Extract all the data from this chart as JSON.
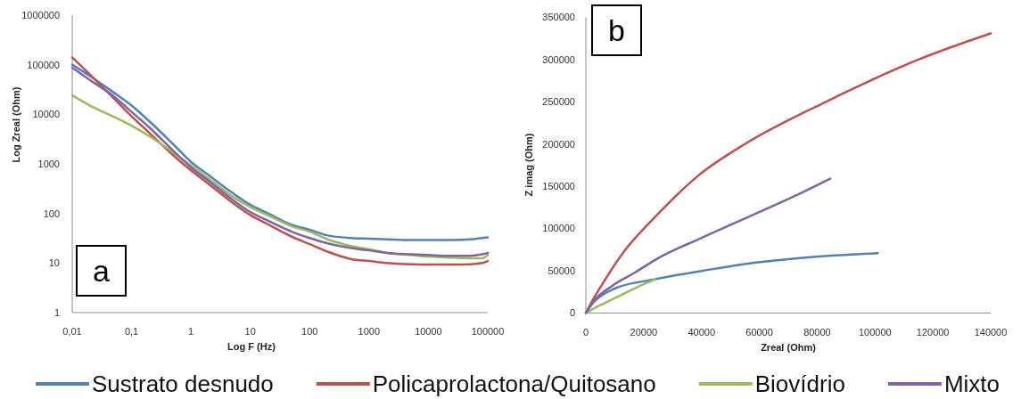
{
  "chart_data": [
    {
      "type": "line",
      "xlabel": "Log F (Hz)",
      "ylabel": "Log Zreal (Ohm)",
      "log": "xy",
      "xlim": [
        0.01,
        100000
      ],
      "ylim": [
        1,
        1000000
      ],
      "xticks": [
        {
          "value": 0.01,
          "label": "0,01"
        },
        {
          "value": 0.1,
          "label": "0,1"
        },
        1,
        10,
        100,
        1000,
        10000,
        100000
      ],
      "yticks": [
        1,
        10,
        100,
        1000,
        10000,
        100000,
        1000000
      ],
      "legend": "bottom",
      "annotations": [
        "a"
      ],
      "x": [
        0.01,
        0.02,
        0.05,
        0.1,
        0.2,
        0.5,
        1,
        2,
        5,
        10,
        20,
        50,
        100,
        200,
        500,
        1000,
        2000,
        5000,
        10000,
        20000,
        50000,
        80000,
        100000
      ],
      "series": [
        {
          "name": "Sustrato desnudo",
          "color": "#4f81bd",
          "values": [
            100000,
            59000,
            27500,
            15000,
            7200,
            2500,
            1100,
            590,
            260,
            150,
            100,
            59,
            47,
            36,
            32,
            31,
            30,
            29,
            29,
            29,
            30,
            32,
            33
          ]
        },
        {
          "name": "Policaprolactona/Quitosano",
          "color": "#c0504d",
          "values": [
            140000,
            63000,
            21000,
            9100,
            4200,
            1500,
            740,
            390,
            165,
            93,
            60,
            34,
            24,
            17,
            12,
            11,
            10,
            9.4,
            9.3,
            9.3,
            9.4,
            10,
            11
          ]
        },
        {
          "name": "Biovídrio",
          "color": "#9bbb59",
          "values": [
            24000,
            15000,
            8900,
            5900,
            3600,
            1700,
            930,
            500,
            220,
            135,
            91,
            55,
            43,
            30,
            22,
            19,
            16,
            14.5,
            13.5,
            13,
            12.5,
            12.5,
            14.5
          ]
        },
        {
          "name": "Mixto",
          "color": "#8064a2",
          "values": [
            87000,
            49000,
            23000,
            11200,
            5400,
            1850,
            850,
            450,
            190,
            107,
            71,
            43,
            32,
            25,
            20,
            18,
            16,
            15,
            14.5,
            14,
            14,
            15,
            16
          ]
        }
      ]
    },
    {
      "type": "line",
      "xlabel": "Zreal (Ohm)",
      "ylabel": "Z imag (Ohm)",
      "xlim": [
        0,
        140000
      ],
      "ylim": [
        0,
        350000
      ],
      "xticks": [
        0,
        20000,
        40000,
        60000,
        80000,
        100000,
        120000,
        140000
      ],
      "yticks": [
        0,
        50000,
        100000,
        150000,
        200000,
        250000,
        300000,
        350000
      ],
      "legend": "bottom",
      "annotations": [
        "b"
      ],
      "series": [
        {
          "name": "Sustrato desnudo",
          "color": "#4f81bd",
          "x": [
            0,
            2000,
            4000,
            10000,
            24000,
            42000,
            55000,
            74000,
            85000,
            101000
          ],
          "values": [
            0,
            10000,
            17000,
            29000,
            40000,
            51000,
            58000,
            65000,
            68000,
            71000
          ]
        },
        {
          "name": "Policaprolactona/Quitosano",
          "color": "#c0504d",
          "x": [
            0,
            2000,
            6000,
            13000,
            24000,
            39000,
            55000,
            83000,
            115000,
            140000
          ],
          "values": [
            0,
            13000,
            36000,
            72000,
            114000,
            163000,
            200000,
            250000,
            300000,
            331000
          ]
        },
        {
          "name": "Biovídrio",
          "color": "#9bbb59",
          "x": [
            0,
            2500,
            6000,
            12000,
            18000,
            24000
          ],
          "values": [
            0,
            5000,
            11000,
            21000,
            31000,
            40000
          ]
        },
        {
          "name": "Mixto",
          "color": "#8064a2",
          "x": [
            0,
            3000,
            9000,
            17000,
            25000,
            40000,
            57000,
            75000,
            84500
          ],
          "values": [
            0,
            15000,
            32000,
            48000,
            65000,
            89000,
            115000,
            143000,
            159000
          ]
        }
      ]
    }
  ]
}
